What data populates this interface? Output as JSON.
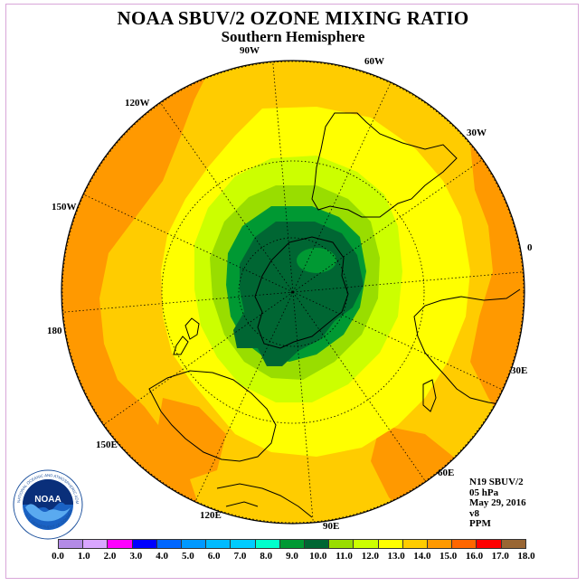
{
  "header": {
    "title": "NOAA SBUV/2 OZONE MIXING RATIO",
    "subtitle": "Southern Hemisphere"
  },
  "map": {
    "longitude_labels": [
      "0",
      "30E",
      "60E",
      "90E",
      "120E",
      "150E",
      "180",
      "150W",
      "120W",
      "90W",
      "60W",
      "30W"
    ],
    "ocean_color": "#ffcc00",
    "land_outline_color": "#000000"
  },
  "info": {
    "satellite": "N19 SBUV/2",
    "level": "05 hPa",
    "date": "May 29, 2016",
    "version": "v8",
    "units": "PPM"
  },
  "colorbar": {
    "ticks": [
      "0.0",
      "1.0",
      "2.0",
      "3.0",
      "4.0",
      "5.0",
      "6.0",
      "7.0",
      "8.0",
      "9.0",
      "10.0",
      "11.0",
      "12.0",
      "13.0",
      "14.0",
      "15.0",
      "16.0",
      "17.0",
      "18.0"
    ],
    "colors": [
      "#b38be6",
      "#d9a6ff",
      "#ff00ff",
      "#0000ff",
      "#0066ff",
      "#0099ff",
      "#00bbff",
      "#00ccff",
      "#00ffcc",
      "#009933",
      "#006633",
      "#99dd00",
      "#ccff00",
      "#ffff00",
      "#ffcc00",
      "#ff9900",
      "#ff6600",
      "#ff0000",
      "#996633"
    ]
  },
  "logo": {
    "text": "NOAA",
    "ring_text": "NATIONAL OCEANIC AND ATMOSPHERIC ADMINISTRATION",
    "bottom_text": "U.S. DEPARTMENT OF COMMERCE"
  }
}
